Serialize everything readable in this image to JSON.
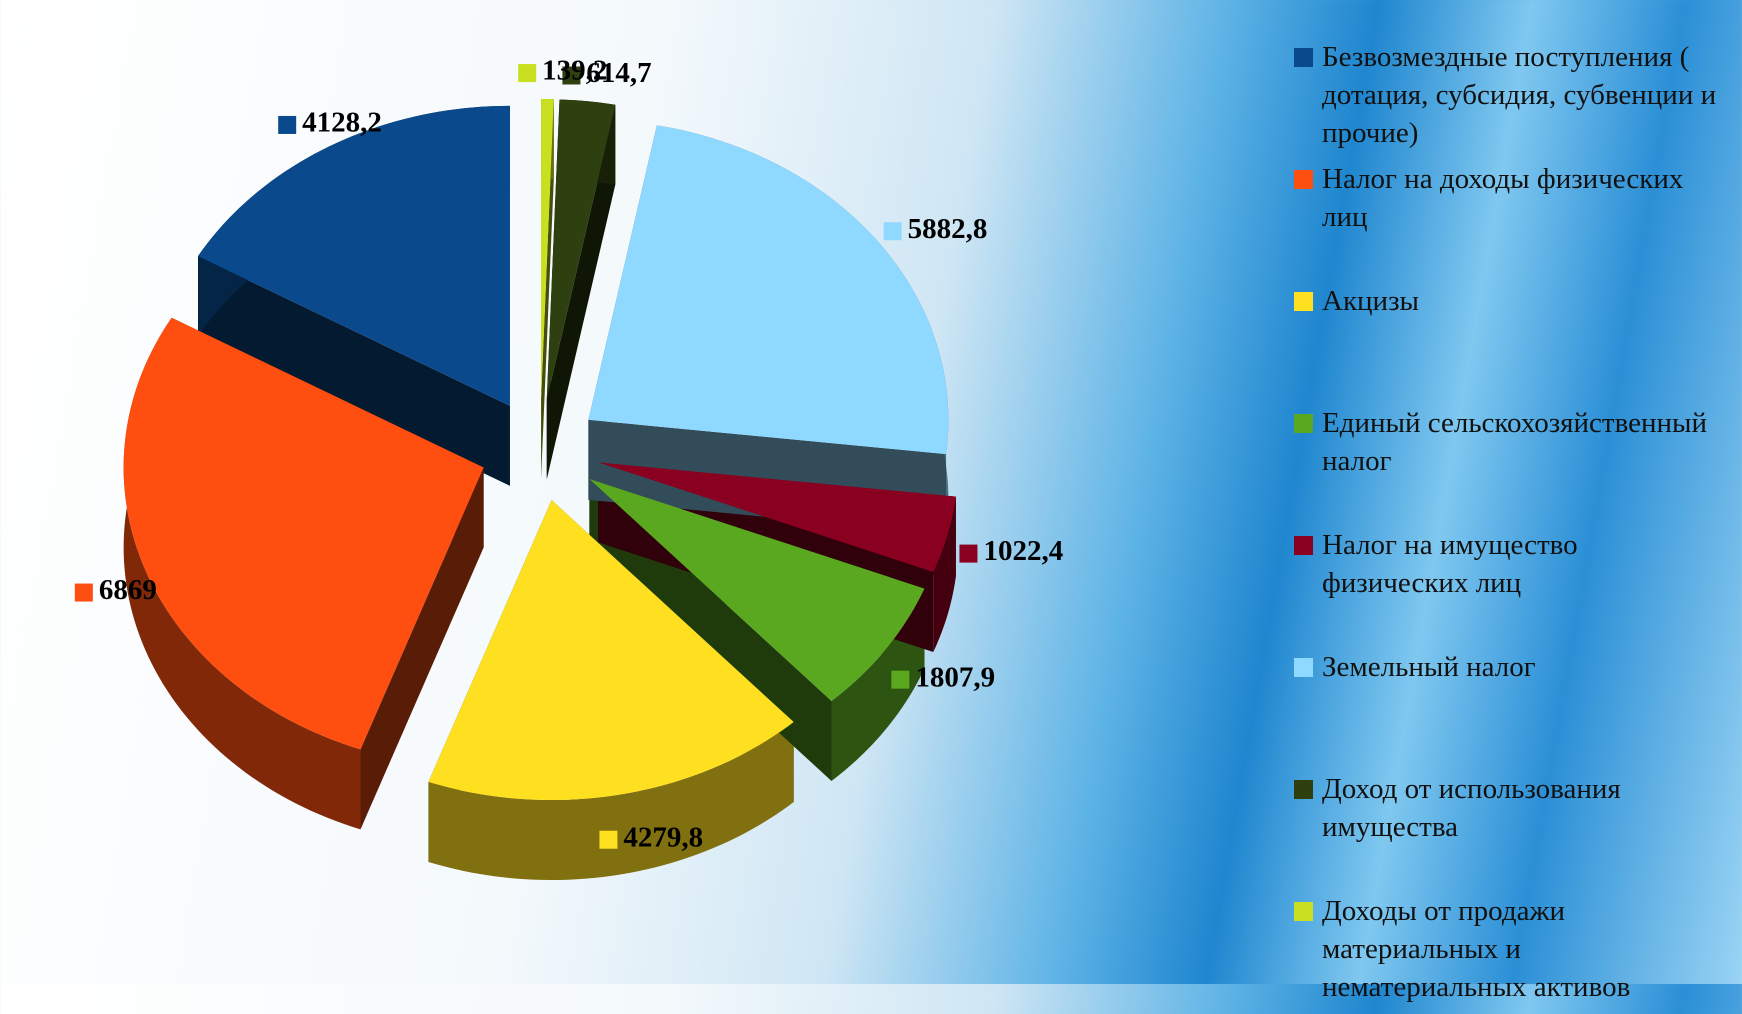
{
  "chart_data": {
    "type": "pie",
    "categories": [
      "Безвозмездные поступления ( дотация, субсидия, субвенции и прочие)",
      "Налог на доходы физических лиц",
      "Акцизы",
      "Единый сельскохозяйственный налог",
      "Налог на имущество физических лиц",
      "Земельный налог",
      "Доход от использования имущества",
      "Доходы от продажи материальных и нематериальных активов"
    ],
    "values": [
      4128.2,
      6869,
      4279.8,
      1807.9,
      1022.4,
      5882.8,
      614.7,
      139.2
    ],
    "value_labels": [
      "4128,2",
      "6869",
      "4279,8",
      "1807,9",
      "1022,4",
      "5882,8",
      "614,7",
      "139,2"
    ],
    "colors": [
      "#0a4a8c",
      "#ff4f10",
      "#ffe020",
      "#5aa820",
      "#8a0020",
      "#8fd8ff",
      "#2f4010",
      "#c8e020"
    ],
    "legend": "right"
  }
}
